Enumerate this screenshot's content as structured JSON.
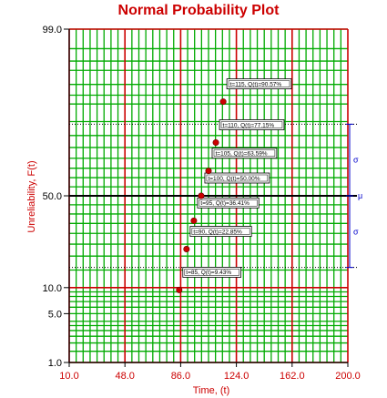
{
  "chart_data": {
    "type": "scatter",
    "title": "Normal Probability Plot",
    "xlabel": "Time, (t)",
    "ylabel": "Unreliability, F(t)",
    "xlim": [
      10.0,
      200.0
    ],
    "ylim": [
      1.0,
      99.0
    ],
    "x_ticks": [
      "10.0",
      "48.0",
      "86.0",
      "124.0",
      "162.0",
      "200.0"
    ],
    "y_ticks": [
      "99.0",
      "50.0",
      "10.0",
      "5.0",
      "1.0"
    ],
    "y_scale": "normal-probability",
    "grid": true,
    "mu_label": "μ",
    "sigma_label": "σ",
    "sigma_bounds": [
      15.87,
      84.13
    ],
    "colors": {
      "title": "#cc0000",
      "grid_minor": "#00aa00",
      "grid_major": "#cc0000",
      "points": "#cc0000",
      "sigma_marker": "#0000cc"
    },
    "points": [
      {
        "x": 85,
        "y": 9.43,
        "label": "t=85, Q(t)=9.43%"
      },
      {
        "x": 90,
        "y": 22.85,
        "label": "t=90, Q(t)=22.85%"
      },
      {
        "x": 95,
        "y": 36.41,
        "label": "t=95, Q(t)=36.41%"
      },
      {
        "x": 100,
        "y": 50.0,
        "label": "t=100, Q(t)=50.00%"
      },
      {
        "x": 105,
        "y": 63.59,
        "label": "t=105, Q(t)=63.59%"
      },
      {
        "x": 110,
        "y": 77.15,
        "label": "t=110, Q(t)=77.15%"
      },
      {
        "x": 115,
        "y": 90.57,
        "label": "t=115, Q(t)=90.57%"
      }
    ]
  }
}
